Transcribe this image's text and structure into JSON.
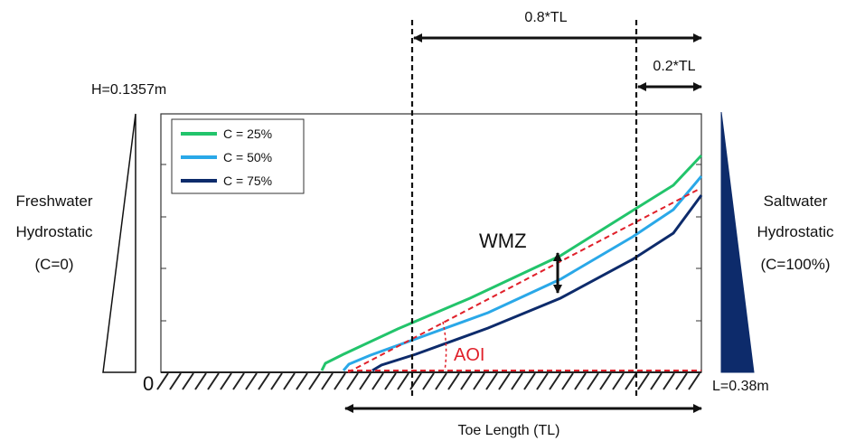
{
  "labels": {
    "freshwater_line1": "Freshwater",
    "freshwater_line2": "Hydrostatic",
    "freshwater_line3": "(C=0)",
    "saltwater_line1": "Saltwater",
    "saltwater_line2": "Hydrostatic",
    "saltwater_line3": "(C=100%)",
    "height": "H=0.1357m",
    "length": "L=0.38m",
    "origin": "0",
    "dim_08": "0.8*TL",
    "dim_02": "0.2*TL",
    "toe_length": "Toe Length (TL)",
    "wmz": "WMZ",
    "aoi": "AOI"
  },
  "legend": [
    {
      "label": "C = 25%",
      "color": "#22c46b"
    },
    {
      "label": "C = 50%",
      "color": "#2aa8e8"
    },
    {
      "label": "C = 75%",
      "color": "#0d2b6b"
    }
  ],
  "colors": {
    "c25": "#22c46b",
    "c50": "#2aa8e8",
    "c75": "#0d2b6b",
    "aoi": "#e0202a",
    "saltwater_fill": "#0d2b6b"
  }
}
